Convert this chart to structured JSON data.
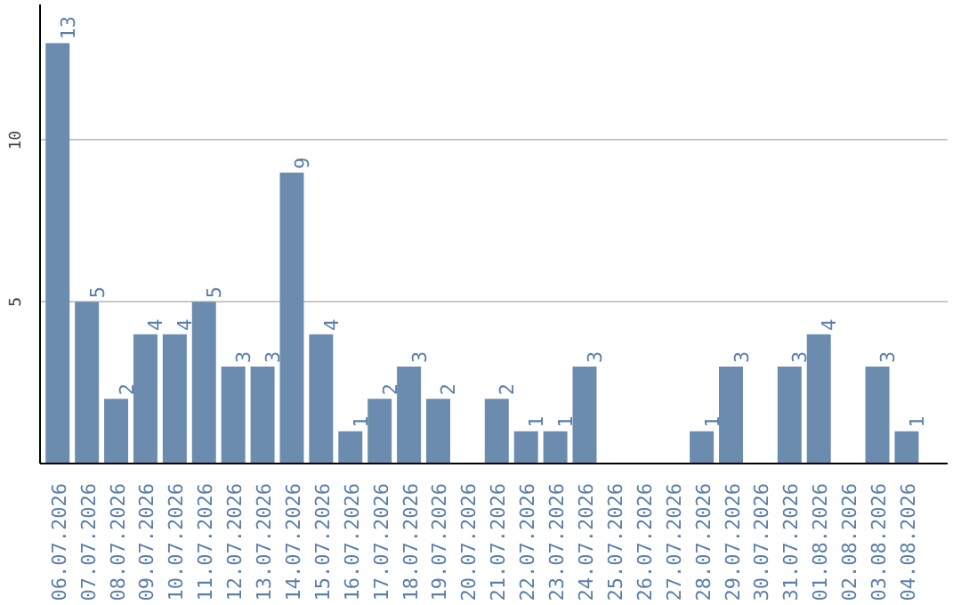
{
  "chart_data": {
    "type": "bar",
    "categories": [
      "06.07.2026",
      "07.07.2026",
      "08.07.2026",
      "09.07.2026",
      "10.07.2026",
      "11.07.2026",
      "12.07.2026",
      "13.07.2026",
      "14.07.2026",
      "15.07.2026",
      "16.07.2026",
      "17.07.2026",
      "18.07.2026",
      "19.07.2026",
      "20.07.2026",
      "21.07.2026",
      "22.07.2026",
      "23.07.2026",
      "24.07.2026",
      "25.07.2026",
      "26.07.2026",
      "27.07.2026",
      "28.07.2026",
      "29.07.2026",
      "30.07.2026",
      "31.07.2026",
      "01.08.2026",
      "02.08.2026",
      "03.08.2026",
      "04.08.2026"
    ],
    "values": [
      13,
      5,
      2,
      4,
      4,
      5,
      3,
      3,
      9,
      4,
      1,
      2,
      3,
      2,
      null,
      2,
      1,
      1,
      3,
      null,
      null,
      null,
      1,
      3,
      null,
      3,
      4,
      null,
      3,
      1
    ],
    "color": "#6b8cae",
    "ylim": [
      0,
      14.2
    ],
    "yticks": [
      5,
      10
    ],
    "grid": "y",
    "data_labels": true
  }
}
